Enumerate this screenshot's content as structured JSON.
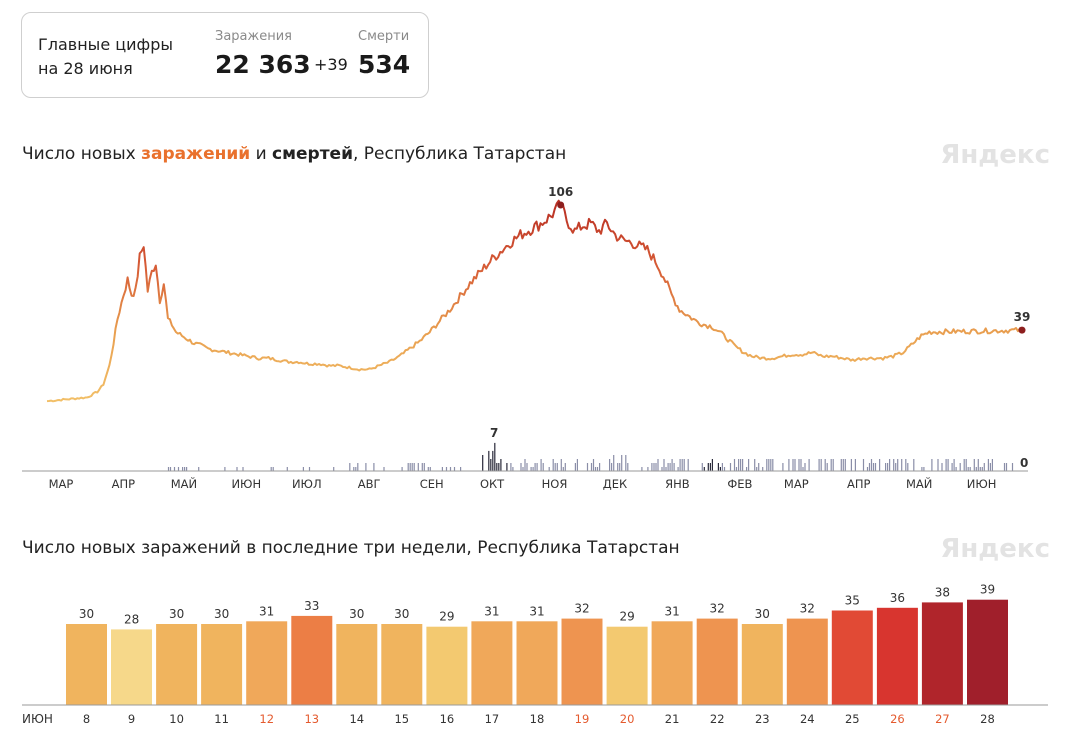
{
  "summary": {
    "lead_line1": "Главные цифры",
    "lead_line2": "на 28 июня",
    "cases_label": "Заражения",
    "cases_value": "22 363",
    "cases_delta": "+39",
    "deaths_label": "Смерти",
    "deaths_value": "534"
  },
  "chart1": {
    "title_part1": "Число новых ",
    "title_cases": "заражений",
    "title_part2": " и ",
    "title_deaths": "смертей",
    "title_part3": ", Республика Татарстан",
    "brand": "Яндекс"
  },
  "chart2": {
    "title": "Число новых заражений в последние три недели, Республика Татарстан",
    "brand": "Яндекс"
  },
  "chart_data": [
    {
      "type": "line",
      "x_unit": "day",
      "x_start": "2020-03-01",
      "x_end": "2021-06-28",
      "series": [
        {
          "key": "cases",
          "keypoints": [
            [
              0,
              1
            ],
            [
              10,
              2
            ],
            [
              20,
              3
            ],
            [
              25,
              6
            ],
            [
              28,
              10
            ],
            [
              31,
              20
            ],
            [
              33,
              32
            ],
            [
              35,
              45
            ],
            [
              38,
              58
            ],
            [
              40,
              66
            ],
            [
              42,
              58
            ],
            [
              44,
              60
            ],
            [
              46,
              78
            ],
            [
              48,
              85
            ],
            [
              50,
              60
            ],
            [
              52,
              70
            ],
            [
              54,
              75
            ],
            [
              56,
              55
            ],
            [
              58,
              64
            ],
            [
              60,
              45
            ],
            [
              62,
              42
            ],
            [
              64,
              38
            ],
            [
              67,
              36
            ],
            [
              70,
              34
            ],
            [
              73,
              32
            ],
            [
              76,
              31
            ],
            [
              80,
              29
            ],
            [
              85,
              28
            ],
            [
              90,
              27
            ],
            [
              95,
              26
            ],
            [
              100,
              25
            ],
            [
              105,
              24
            ],
            [
              110,
              24
            ],
            [
              115,
              23
            ],
            [
              120,
              22
            ],
            [
              125,
              22
            ],
            [
              130,
              21
            ],
            [
              135,
              21
            ],
            [
              140,
              20
            ],
            [
              145,
              20
            ],
            [
              150,
              19
            ],
            [
              155,
              18
            ],
            [
              160,
              18
            ],
            [
              165,
              20
            ],
            [
              170,
              22
            ],
            [
              175,
              25
            ],
            [
              180,
              29
            ],
            [
              185,
              33
            ],
            [
              190,
              38
            ],
            [
              195,
              44
            ],
            [
              200,
              50
            ],
            [
              205,
              57
            ],
            [
              210,
              64
            ],
            [
              215,
              70
            ],
            [
              220,
              76
            ],
            [
              225,
              81
            ],
            [
              230,
              86
            ],
            [
              235,
              90
            ],
            [
              240,
              93
            ],
            [
              245,
              96
            ],
            [
              250,
              100
            ],
            [
              253,
              104
            ],
            [
              255,
              106
            ],
            [
              258,
              98
            ],
            [
              262,
              92
            ],
            [
              266,
              95
            ],
            [
              270,
              96
            ],
            [
              274,
              92
            ],
            [
              278,
              96
            ],
            [
              282,
              90
            ],
            [
              286,
              87
            ],
            [
              290,
              86
            ],
            [
              294,
              84
            ],
            [
              298,
              82
            ],
            [
              302,
              76
            ],
            [
              306,
              68
            ],
            [
              310,
              58
            ],
            [
              314,
              50
            ],
            [
              318,
              47
            ],
            [
              322,
              44
            ],
            [
              326,
              42
            ],
            [
              330,
              41
            ],
            [
              334,
              38
            ],
            [
              338,
              34
            ],
            [
              342,
              30
            ],
            [
              346,
              27
            ],
            [
              350,
              25
            ],
            [
              355,
              24
            ],
            [
              360,
              24
            ],
            [
              365,
              25
            ],
            [
              370,
              26
            ],
            [
              375,
              26
            ],
            [
              380,
              27
            ],
            [
              385,
              25
            ],
            [
              390,
              25
            ],
            [
              395,
              24
            ],
            [
              400,
              23
            ],
            [
              405,
              24
            ],
            [
              410,
              24
            ],
            [
              415,
              24
            ],
            [
              420,
              25
            ],
            [
              425,
              27
            ],
            [
              430,
              32
            ],
            [
              434,
              36
            ],
            [
              438,
              38
            ],
            [
              484,
              39
            ]
          ],
          "peak_label": "106",
          "end_label": "39"
        },
        {
          "key": "deaths",
          "description": "daily deaths, bars",
          "max_label": "7",
          "max_value": 7,
          "end_label": "0"
        }
      ],
      "x_ticks": [
        "МАР",
        "АПР",
        "МАЙ",
        "ИЮН",
        "ИЮЛ",
        "АВГ",
        "СЕН",
        "ОКТ",
        "НОЯ",
        "ДЕК",
        "ЯНВ",
        "ФЕВ",
        "МАР",
        "АПР",
        "МАЙ",
        "ИЮН"
      ]
    },
    {
      "type": "bar",
      "month_label": "ИЮН",
      "categories": [
        "8",
        "9",
        "10",
        "11",
        "12",
        "13",
        "14",
        "15",
        "16",
        "17",
        "18",
        "19",
        "20",
        "21",
        "22",
        "23",
        "24",
        "25",
        "26",
        "27",
        "28"
      ],
      "values": [
        30,
        28,
        30,
        30,
        31,
        33,
        30,
        30,
        29,
        31,
        31,
        32,
        29,
        31,
        32,
        30,
        32,
        35,
        36,
        38,
        39
      ],
      "weekend_days": [
        "12",
        "13",
        "19",
        "20",
        "26",
        "27"
      ],
      "colors": [
        "#f0b45e",
        "#f6d88a",
        "#f0b45e",
        "#f0b45e",
        "#f0a85a",
        "#ec7e45",
        "#f0b45e",
        "#f0b45e",
        "#f3c970",
        "#f0a85a",
        "#f0a85a",
        "#ee9450",
        "#f3c970",
        "#f0a85a",
        "#ee9450",
        "#f0b45e",
        "#ee9450",
        "#e14a35",
        "#d8352f",
        "#b0252b",
        "#a01f2b"
      ]
    }
  ]
}
